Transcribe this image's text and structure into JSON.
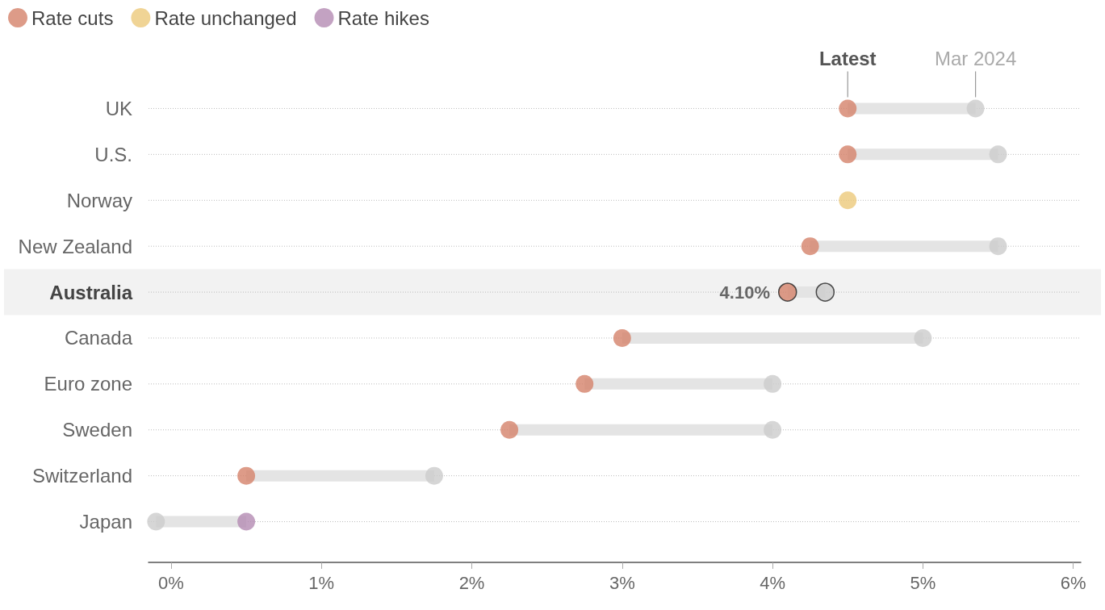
{
  "chart_data": {
    "type": "scatter",
    "categories": [
      "UK",
      "U.S.",
      "Norway",
      "New Zealand",
      "Australia",
      "Canada",
      "Euro zone",
      "Sweden",
      "Switzerland",
      "Japan"
    ],
    "series": [
      {
        "name": "Rate cuts",
        "color": "#d4826a",
        "values": [
          4.5,
          4.5,
          null,
          4.25,
          4.1,
          3.0,
          2.75,
          2.25,
          0.5,
          null
        ],
        "value_labels": [
          null,
          null,
          null,
          null,
          "4.10%",
          null,
          null,
          null,
          null,
          null
        ]
      },
      {
        "name": "Rate unchanged",
        "color": "#ecc97a",
        "values": [
          null,
          null,
          4.5,
          null,
          null,
          null,
          null,
          null,
          null,
          null
        ]
      },
      {
        "name": "Rate hikes",
        "color": "#b48bb3",
        "values": [
          null,
          null,
          null,
          null,
          null,
          null,
          null,
          null,
          null,
          0.5
        ]
      },
      {
        "color": "#cccccc",
        "values": [
          5.35,
          5.5,
          null,
          5.5,
          4.35,
          5.0,
          4.0,
          4.0,
          1.75,
          -0.1
        ]
      }
    ],
    "xlim": [
      -0.15,
      6.05
    ],
    "xticks": [
      {
        "value": 0,
        "label": "0%"
      },
      {
        "value": 1,
        "label": "1%"
      },
      {
        "value": 2,
        "label": "2%"
      },
      {
        "value": 3,
        "label": "3%"
      },
      {
        "value": 4,
        "label": "4%"
      },
      {
        "value": 5,
        "label": "5%"
      },
      {
        "value": 6,
        "label": "6%"
      }
    ],
    "annotations": [
      {
        "text": "Latest",
        "x": 4.5,
        "y": "UK"
      },
      {
        "text": "Mar 2024",
        "x": 5.35,
        "y": "UK"
      }
    ],
    "bands": [
      {
        "axis": "y",
        "from": "Australia",
        "to": "Australia",
        "color": "#f2f2f2"
      }
    ],
    "grid": "y",
    "legend": "top left",
    "marker": "circle",
    "orientation": "horizontal"
  }
}
